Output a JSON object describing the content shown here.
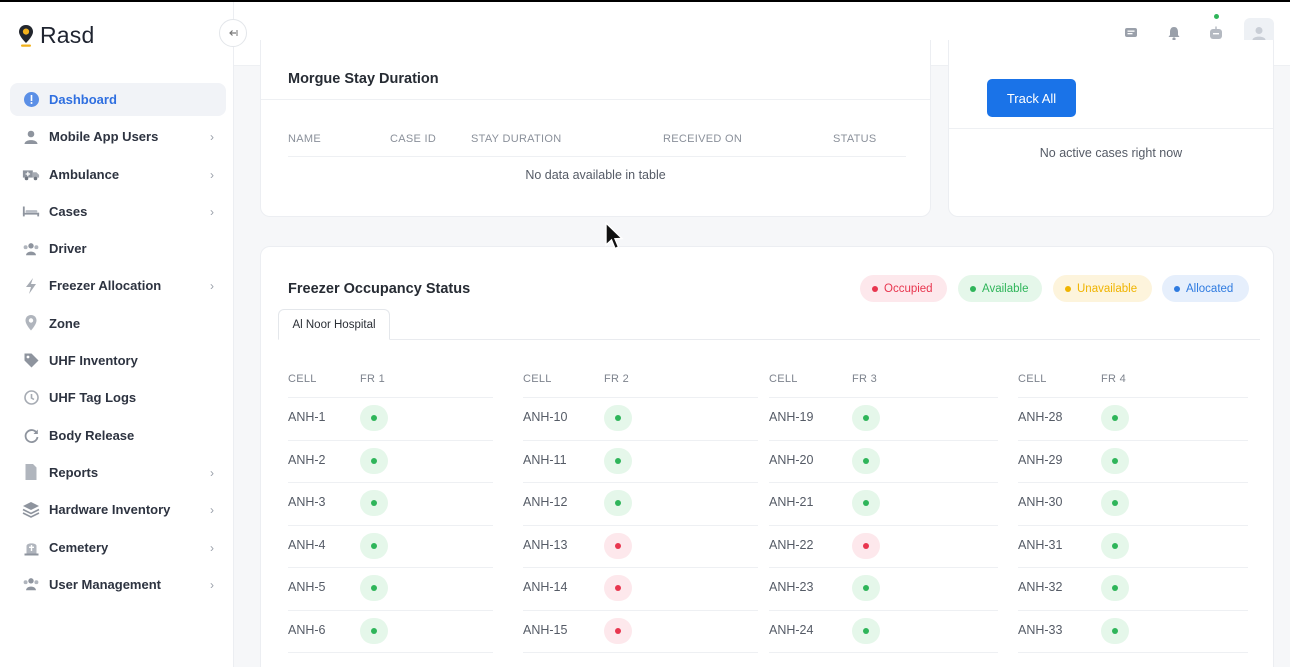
{
  "app": {
    "name": "Rasd"
  },
  "colors": {
    "accent": "#2f6fe0",
    "button": "#1a73e8",
    "occupied": "#e8364f",
    "available": "#2fb55a",
    "unavailable": "#f0b400",
    "allocated": "#2f7be0"
  },
  "sidebar": {
    "collapse_icon": "arrow-left-icon",
    "items": [
      {
        "label": "Dashboard",
        "icon": "dashboard-icon",
        "active": true,
        "chevron": false
      },
      {
        "label": "Mobile App Users",
        "icon": "user-icon",
        "chevron": true
      },
      {
        "label": "Ambulance",
        "icon": "ambulance-icon",
        "chevron": true
      },
      {
        "label": "Cases",
        "icon": "bed-icon",
        "chevron": true
      },
      {
        "label": "Driver",
        "icon": "driver-icon",
        "chevron": false
      },
      {
        "label": "Freezer Allocation",
        "icon": "bolt-icon",
        "chevron": true
      },
      {
        "label": "Zone",
        "icon": "location-icon",
        "chevron": false
      },
      {
        "label": "UHF Inventory",
        "icon": "tag-icon",
        "chevron": false
      },
      {
        "label": "UHF Tag Logs",
        "icon": "history-icon",
        "chevron": false
      },
      {
        "label": "Body Release",
        "icon": "refresh-icon",
        "chevron": false
      },
      {
        "label": "Reports",
        "icon": "file-icon",
        "chevron": true
      },
      {
        "label": "Hardware Inventory",
        "icon": "layers-icon",
        "chevron": true
      },
      {
        "label": "Cemetery",
        "icon": "tombstone-icon",
        "chevron": true
      },
      {
        "label": "User Management",
        "icon": "users-icon",
        "chevron": true
      }
    ]
  },
  "header": {
    "icons": [
      "chat-icon",
      "bell-icon",
      "robot-icon",
      "avatar-icon"
    ]
  },
  "morgue": {
    "title": "Morgue Stay Duration",
    "columns": [
      "NAME",
      "CASE ID",
      "STAY DURATION",
      "RECEIVED ON",
      "STATUS"
    ],
    "empty": "No data available in table"
  },
  "tracking": {
    "button": "Track All",
    "empty": "No active cases right now"
  },
  "freezer": {
    "title": "Freezer Occupancy Status",
    "legend": [
      {
        "label": "Occupied",
        "key": "occupied",
        "bg": "#fde8ec",
        "fg": "#e8364f"
      },
      {
        "label": "Available",
        "key": "available",
        "bg": "#e5f7ea",
        "fg": "#2fb55a"
      },
      {
        "label": "Unavailable",
        "key": "unavailable",
        "bg": "#fdf4dc",
        "fg": "#f0b400"
      },
      {
        "label": "Allocated",
        "key": "allocated",
        "bg": "#e6effc",
        "fg": "#2f7be0"
      }
    ],
    "tab": "Al Noor Hospital",
    "groups": [
      {
        "cell_header": "CELL",
        "fr_header": "FR 1",
        "rows": [
          {
            "cell": "ANH-1",
            "status": "available"
          },
          {
            "cell": "ANH-2",
            "status": "available"
          },
          {
            "cell": "ANH-3",
            "status": "available"
          },
          {
            "cell": "ANH-4",
            "status": "available"
          },
          {
            "cell": "ANH-5",
            "status": "available"
          },
          {
            "cell": "ANH-6",
            "status": "available"
          }
        ]
      },
      {
        "cell_header": "CELL",
        "fr_header": "FR 2",
        "rows": [
          {
            "cell": "ANH-10",
            "status": "available"
          },
          {
            "cell": "ANH-11",
            "status": "available"
          },
          {
            "cell": "ANH-12",
            "status": "available"
          },
          {
            "cell": "ANH-13",
            "status": "occupied"
          },
          {
            "cell": "ANH-14",
            "status": "occupied"
          },
          {
            "cell": "ANH-15",
            "status": "occupied"
          }
        ]
      },
      {
        "cell_header": "CELL",
        "fr_header": "FR 3",
        "rows": [
          {
            "cell": "ANH-19",
            "status": "available"
          },
          {
            "cell": "ANH-20",
            "status": "available"
          },
          {
            "cell": "ANH-21",
            "status": "available"
          },
          {
            "cell": "ANH-22",
            "status": "occupied"
          },
          {
            "cell": "ANH-23",
            "status": "available"
          },
          {
            "cell": "ANH-24",
            "status": "available"
          }
        ]
      },
      {
        "cell_header": "CELL",
        "fr_header": "FR 4",
        "rows": [
          {
            "cell": "ANH-28",
            "status": "available"
          },
          {
            "cell": "ANH-29",
            "status": "available"
          },
          {
            "cell": "ANH-30",
            "status": "available"
          },
          {
            "cell": "ANH-31",
            "status": "available"
          },
          {
            "cell": "ANH-32",
            "status": "available"
          },
          {
            "cell": "ANH-33",
            "status": "available"
          }
        ]
      }
    ]
  }
}
